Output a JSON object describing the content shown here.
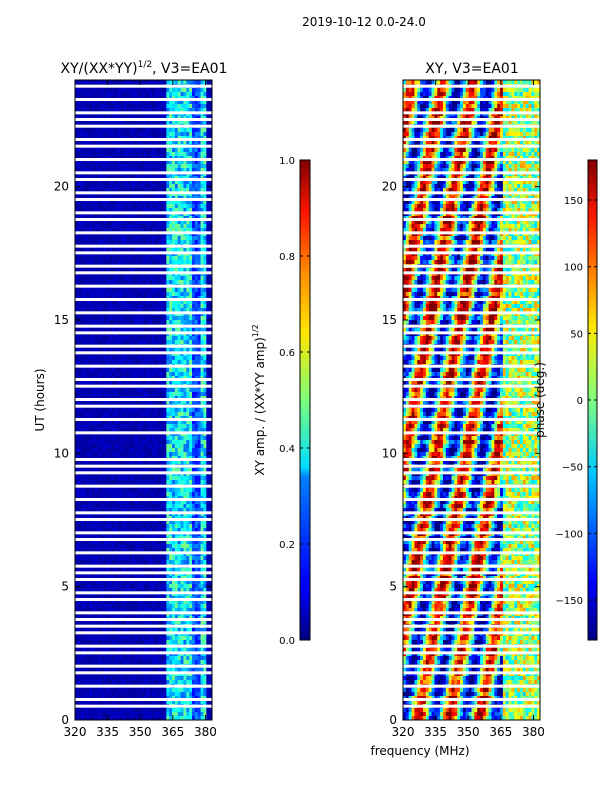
{
  "suptitle": "2019-10-12 0.0-24.0",
  "colors": {
    "gap": "#ffffff",
    "axis": "#000000"
  },
  "chart_data": [
    {
      "type": "heatmap",
      "title": "XY/(XX*YY)",
      "title_superscript": "1/2",
      "title_suffix": ", V3=EA01",
      "xlabel": "",
      "ylabel": "UT (hours)",
      "xlim": [
        320,
        383
      ],
      "ylim": [
        0,
        24
      ],
      "xticks": [
        "320",
        "335",
        "350",
        "365",
        "380"
      ],
      "yticks": [
        "0",
        "5",
        "10",
        "15",
        "20"
      ],
      "colorbar": {
        "label": "XY amp. / (XX*YY amp)",
        "label_superscript": "1/2",
        "range": [
          0.0,
          1.0
        ],
        "ticks": [
          "0.0",
          "0.2",
          "0.4",
          "0.6",
          "0.8",
          "1.0"
        ],
        "colormap": "jet"
      },
      "description_values": {
        "background_amplitude": 0.05,
        "band_365_380_amplitude": 0.4
      }
    },
    {
      "type": "heatmap",
      "title": "XY, V3=EA01",
      "xlabel": "frequency (MHz)",
      "ylabel": "",
      "xlim": [
        320,
        383
      ],
      "ylim": [
        0,
        24
      ],
      "xticks": [
        "320",
        "335",
        "350",
        "365",
        "380"
      ],
      "yticks": [
        "0",
        "5",
        "10",
        "15",
        "20"
      ],
      "colorbar": {
        "label": "phase (deg.)",
        "range": [
          -180,
          180
        ],
        "ticks": [
          "−150",
          "−100",
          "−50",
          "0",
          "50",
          "100",
          "150"
        ],
        "colormap": "jet"
      }
    }
  ],
  "gap_rows_hours": [
    23.75,
    23.25,
    22.75,
    22.5,
    22.25,
    21.75,
    21.5,
    21.0,
    20.5,
    20.25,
    19.75,
    19.5,
    19.0,
    18.75,
    18.25,
    17.75,
    17.5,
    17.0,
    16.75,
    16.25,
    15.75,
    15.25,
    14.75,
    14.5,
    14.0,
    13.75,
    13.25,
    12.75,
    12.5,
    12.0,
    11.75,
    11.25,
    10.75,
    9.75,
    9.5,
    9.25,
    8.75,
    8.25,
    7.75,
    7.5,
    7.0,
    6.75,
    6.25,
    5.75,
    5.5,
    5.25,
    4.75,
    4.5,
    4.0,
    3.75,
    3.5,
    3.25,
    2.75,
    2.5,
    2.0,
    1.75,
    1.25,
    0.75,
    0.5
  ]
}
